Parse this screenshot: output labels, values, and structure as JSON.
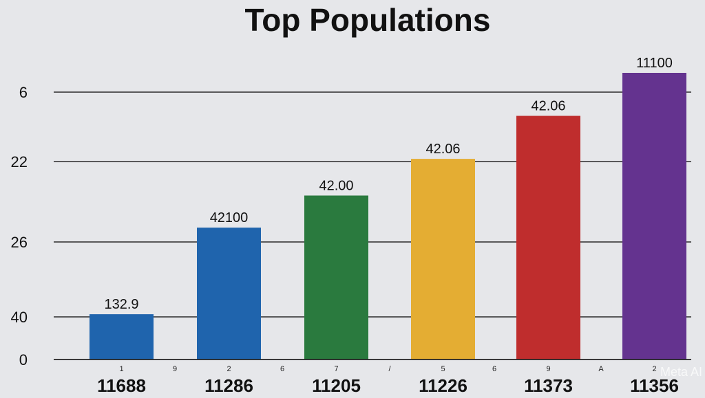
{
  "chart_data": {
    "type": "bar",
    "title": "Top Populations",
    "categories": [
      "11688",
      "11286",
      "11205",
      "11226",
      "11373",
      "11356"
    ],
    "category_marks": [
      "1",
      "2",
      "7",
      "5",
      "9",
      "2"
    ],
    "between_marks": [
      "9",
      "6",
      "/",
      "6",
      "A"
    ],
    "values": [
      132.9,
      42100,
      42.0,
      42.06,
      42.06,
      11100
    ],
    "value_labels": [
      "132.9",
      "42100",
      "42.00",
      "42.06",
      "42.06",
      "11100"
    ],
    "bar_heights_relative": [
      0.158,
      0.46,
      0.572,
      0.7,
      0.85,
      1.0
    ],
    "colors": [
      "#1f64ad",
      "#1f64ad",
      "#2a7a3e",
      "#e4ad33",
      "#bf2d2d",
      "#64338f"
    ],
    "y_tick_labels": [
      "0",
      "40",
      "26",
      "22",
      "6"
    ],
    "grid": true,
    "xlabel": "",
    "ylabel": ""
  },
  "watermark": "Meta AI"
}
